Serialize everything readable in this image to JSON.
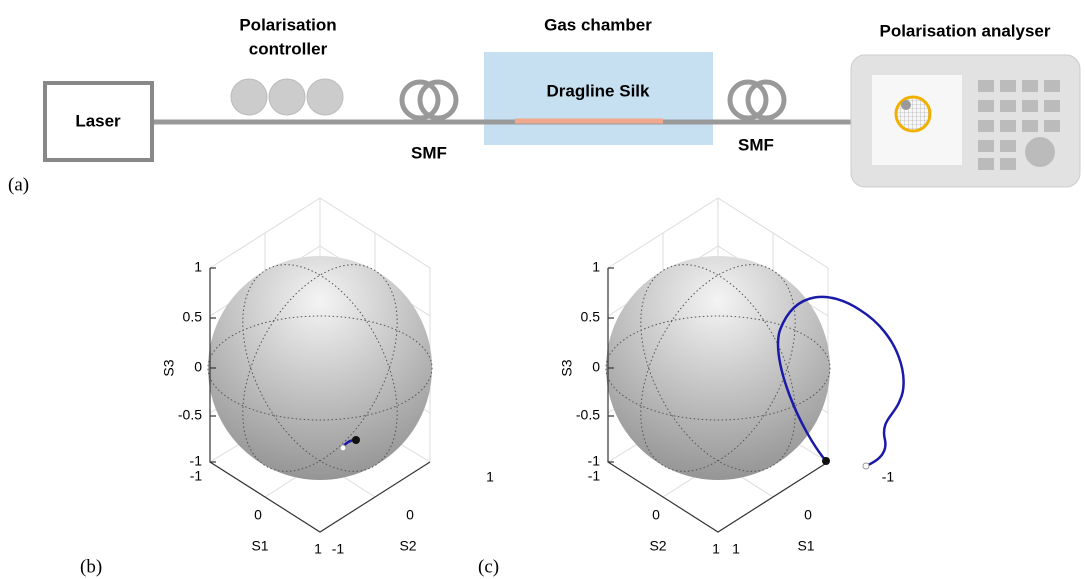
{
  "panel_a": {
    "label": "(a)",
    "laser": "Laser",
    "controller": [
      "Polarisation",
      "controller"
    ],
    "smf_left": "SMF",
    "gas_chamber": "Gas chamber",
    "sample": "Dragline Silk",
    "smf_right": "SMF",
    "analyser": "Polarisation analyser"
  },
  "panel_b": {
    "label": "(b)",
    "z_label": "S3",
    "z_ticks": [
      "1",
      "0.5",
      "0",
      "-0.5",
      "-1"
    ],
    "left_label": "S1",
    "left_ticks": [
      "-1",
      "0",
      "1"
    ],
    "right_label": "S2",
    "right_ticks": [
      "-1",
      "0",
      "1"
    ]
  },
  "panel_c": {
    "label": "(c)",
    "z_label": "S3",
    "z_ticks": [
      "1",
      "0.5",
      "0",
      "-0.5",
      "-1"
    ],
    "left_label": "S2",
    "left_ticks": [
      "-1",
      "0",
      "1"
    ],
    "right_label": "S1",
    "right_ticks": [
      "1",
      "0",
      "-1"
    ]
  }
}
